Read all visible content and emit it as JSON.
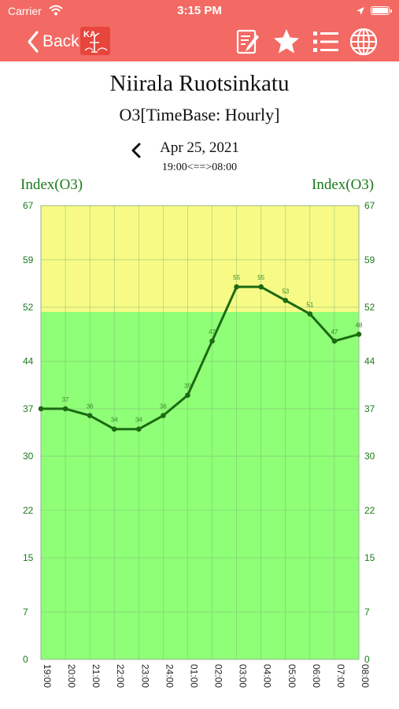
{
  "status_bar": {
    "carrier": "Carrier",
    "time": "3:15 PM"
  },
  "nav": {
    "back_label": "Back",
    "logo_text": "KA",
    "icons": [
      "edit-icon",
      "star-icon",
      "list-icon",
      "globe-icon"
    ]
  },
  "header": {
    "station": "Niirala Ruotsinkatu",
    "subtitle": "O3[TimeBase: Hourly]",
    "date": "Apr 25, 2021",
    "time_range": "19:00<==>08:00"
  },
  "chart_data": {
    "type": "line",
    "title": "",
    "ylabel_left": "Index(O3)",
    "ylabel_right": "Index(O3)",
    "ylim": [
      0,
      67
    ],
    "yticks": [
      0,
      7,
      15,
      22,
      30,
      37,
      44,
      52,
      59,
      67
    ],
    "x": [
      "19:00",
      "20:00",
      "21:00",
      "22:00",
      "23:00",
      "24:00",
      "01:00",
      "02:00",
      "03:00",
      "04:00",
      "05:00",
      "06:00",
      "07:00",
      "08:00"
    ],
    "series": [
      {
        "values": [
          37,
          37,
          36,
          34,
          34,
          36,
          39,
          47,
          55,
          55,
          53,
          51,
          47,
          48
        ],
        "color": "#1c6a12"
      }
    ],
    "bands": [
      {
        "from": 0,
        "to": 51.3,
        "color": "#8fff78"
      },
      {
        "from": 51.3,
        "to": 67,
        "color": "#f7fb86"
      }
    ],
    "grid": true,
    "tick_color": "#1a7a1a"
  }
}
